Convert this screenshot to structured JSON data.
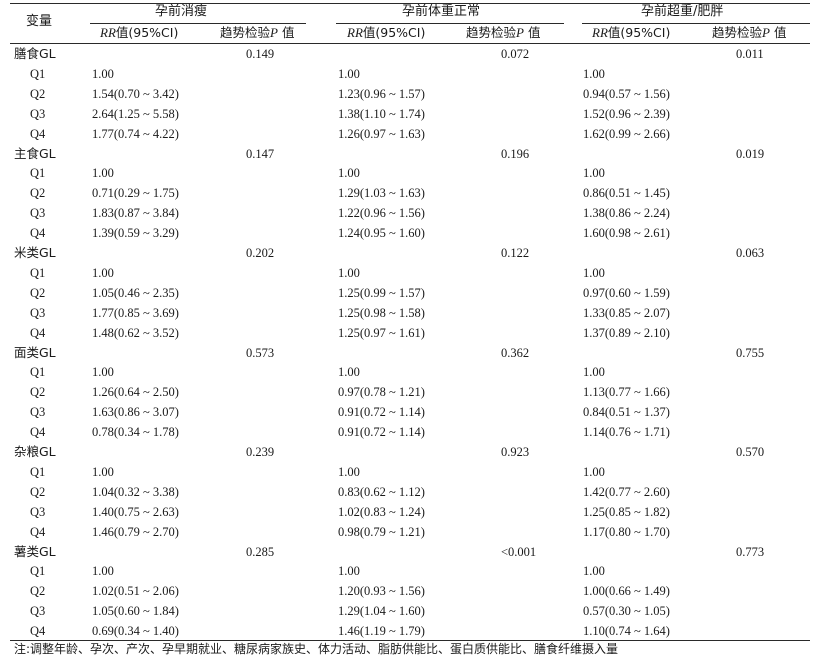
{
  "table": {
    "header": {
      "variable": "变量",
      "groups": [
        "孕前消瘦",
        "孕前体重正常",
        "孕前超重/肥胖"
      ],
      "rr_label": "RR",
      "rr_suffix": "值(95%CI)",
      "trend_label_prefix": "趋势检验",
      "trend_label_p": "P",
      "trend_label_suffix": "值"
    },
    "sections": [
      {
        "name": "膳食GL",
        "p": [
          "0.149",
          "0.072",
          "0.011"
        ],
        "rows": [
          {
            "q": "Q1",
            "rr": [
              "1.00",
              "1.00",
              "1.00"
            ]
          },
          {
            "q": "Q2",
            "rr": [
              "1.54(0.70 ~ 3.42)",
              "1.23(0.96 ~ 1.57)",
              "0.94(0.57 ~ 1.56)"
            ]
          },
          {
            "q": "Q3",
            "rr": [
              "2.64(1.25 ~ 5.58)",
              "1.38(1.10 ~ 1.74)",
              "1.52(0.96 ~ 2.39)"
            ]
          },
          {
            "q": "Q4",
            "rr": [
              "1.77(0.74 ~ 4.22)",
              "1.26(0.97 ~ 1.63)",
              "1.62(0.99 ~ 2.66)"
            ]
          }
        ]
      },
      {
        "name": "主食GL",
        "p": [
          "0.147",
          "0.196",
          "0.019"
        ],
        "rows": [
          {
            "q": "Q1",
            "rr": [
              "1.00",
              "1.00",
              "1.00"
            ]
          },
          {
            "q": "Q2",
            "rr": [
              "0.71(0.29 ~ 1.75)",
              "1.29(1.03 ~ 1.63)",
              "0.86(0.51 ~ 1.45)"
            ]
          },
          {
            "q": "Q3",
            "rr": [
              "1.83(0.87 ~ 3.84)",
              "1.22(0.96 ~ 1.56)",
              "1.38(0.86 ~ 2.24)"
            ]
          },
          {
            "q": "Q4",
            "rr": [
              "1.39(0.59 ~ 3.29)",
              "1.24(0.95 ~ 1.60)",
              "1.60(0.98 ~ 2.61)"
            ]
          }
        ]
      },
      {
        "name": "米类GL",
        "p": [
          "0.202",
          "0.122",
          "0.063"
        ],
        "rows": [
          {
            "q": "Q1",
            "rr": [
              "1.00",
              "1.00",
              "1.00"
            ]
          },
          {
            "q": "Q2",
            "rr": [
              "1.05(0.46 ~ 2.35)",
              "1.25(0.99 ~ 1.57)",
              "0.97(0.60 ~ 1.59)"
            ]
          },
          {
            "q": "Q3",
            "rr": [
              "1.77(0.85 ~ 3.69)",
              "1.25(0.98 ~ 1.58)",
              "1.33(0.85 ~ 2.07)"
            ]
          },
          {
            "q": "Q4",
            "rr": [
              "1.48(0.62 ~ 3.52)",
              "1.25(0.97 ~ 1.61)",
              "1.37(0.89 ~ 2.10)"
            ]
          }
        ]
      },
      {
        "name": "面类GL",
        "p": [
          "0.573",
          "0.362",
          "0.755"
        ],
        "rows": [
          {
            "q": "Q1",
            "rr": [
              "1.00",
              "1.00",
              "1.00"
            ]
          },
          {
            "q": "Q2",
            "rr": [
              "1.26(0.64 ~ 2.50)",
              "0.97(0.78 ~ 1.21)",
              "1.13(0.77 ~ 1.66)"
            ]
          },
          {
            "q": "Q3",
            "rr": [
              "1.63(0.86 ~ 3.07)",
              "0.91(0.72 ~ 1.14)",
              "0.84(0.51 ~ 1.37)"
            ]
          },
          {
            "q": "Q4",
            "rr": [
              "0.78(0.34 ~ 1.78)",
              "0.91(0.72 ~ 1.14)",
              "1.14(0.76 ~ 1.71)"
            ]
          }
        ]
      },
      {
        "name": "杂粮GL",
        "p": [
          "0.239",
          "0.923",
          "0.570"
        ],
        "rows": [
          {
            "q": "Q1",
            "rr": [
              "1.00",
              "1.00",
              "1.00"
            ]
          },
          {
            "q": "Q2",
            "rr": [
              "1.04(0.32 ~ 3.38)",
              "0.83(0.62 ~ 1.12)",
              "1.42(0.77 ~ 2.60)"
            ]
          },
          {
            "q": "Q3",
            "rr": [
              "1.40(0.75 ~ 2.63)",
              "1.02(0.83 ~ 1.24)",
              "1.25(0.85 ~ 1.82)"
            ]
          },
          {
            "q": "Q4",
            "rr": [
              "1.46(0.79 ~ 2.70)",
              "0.98(0.79 ~ 1.21)",
              "1.17(0.80 ~ 1.70)"
            ]
          }
        ]
      },
      {
        "name": "薯类GL",
        "p": [
          "0.285",
          "<0.001",
          "0.773"
        ],
        "rows": [
          {
            "q": "Q1",
            "rr": [
              "1.00",
              "1.00",
              "1.00"
            ]
          },
          {
            "q": "Q2",
            "rr": [
              "1.02(0.51 ~ 2.06)",
              "1.20(0.93 ~ 1.56)",
              "1.00(0.66 ~ 1.49)"
            ]
          },
          {
            "q": "Q3",
            "rr": [
              "1.05(0.60 ~ 1.84)",
              "1.29(1.04 ~ 1.60)",
              "0.57(0.30 ~ 1.05)"
            ]
          },
          {
            "q": "Q4",
            "rr": [
              "0.69(0.34 ~ 1.40)",
              "1.46(1.19 ~ 1.79)",
              "1.10(0.74 ~ 1.64)"
            ]
          }
        ]
      }
    ],
    "note": "注:调整年龄、孕次、产次、孕早期就业、糖尿病家族史、体力活动、脂肪供能比、蛋白质供能比、膳食纤维摄入量"
  }
}
